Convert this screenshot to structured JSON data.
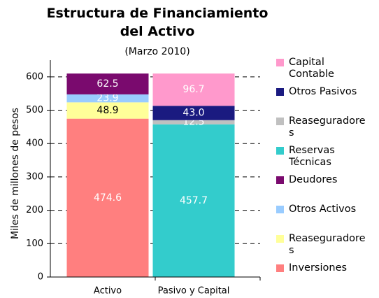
{
  "chart_data": {
    "type": "stacked_bar",
    "title": "Estructura de Financiamiento del Activo",
    "subtitle": "(Marzo 2010)",
    "y_label": "Miles de millones de pesos",
    "categories": [
      "Activo",
      "Pasivo y Capital"
    ],
    "series": [
      {
        "name": "Inversiones",
        "color": "#ff7f7f",
        "values": [
          474.6,
          null
        ]
      },
      {
        "name": "Reaseguradores",
        "color": "#ffff99",
        "values": [
          48.9,
          null
        ]
      },
      {
        "name": "Otros Activos",
        "color": "#99ccff",
        "values": [
          23.9,
          null
        ]
      },
      {
        "name": "Deudores",
        "color": "#7a0a6e",
        "values": [
          62.5,
          null
        ]
      },
      {
        "name": "Reservas Técnicas",
        "color": "#33cccc",
        "values": [
          null,
          457.7
        ]
      },
      {
        "name": "Reaseguradores",
        "color": "#c0c0c0",
        "values": [
          null,
          12.5
        ]
      },
      {
        "name": "Otros Pasivos",
        "color": "#1a1a80",
        "values": [
          null,
          43.0
        ],
        "value_labels": [
          null,
          "43.0"
        ]
      },
      {
        "name": "Capital Contable",
        "color": "#ff99cc",
        "values": [
          null,
          96.7
        ]
      }
    ],
    "ylim": [
      0,
      650
    ],
    "yticks": [
      0,
      100,
      200,
      300,
      400,
      500,
      600
    ],
    "grid": true
  }
}
